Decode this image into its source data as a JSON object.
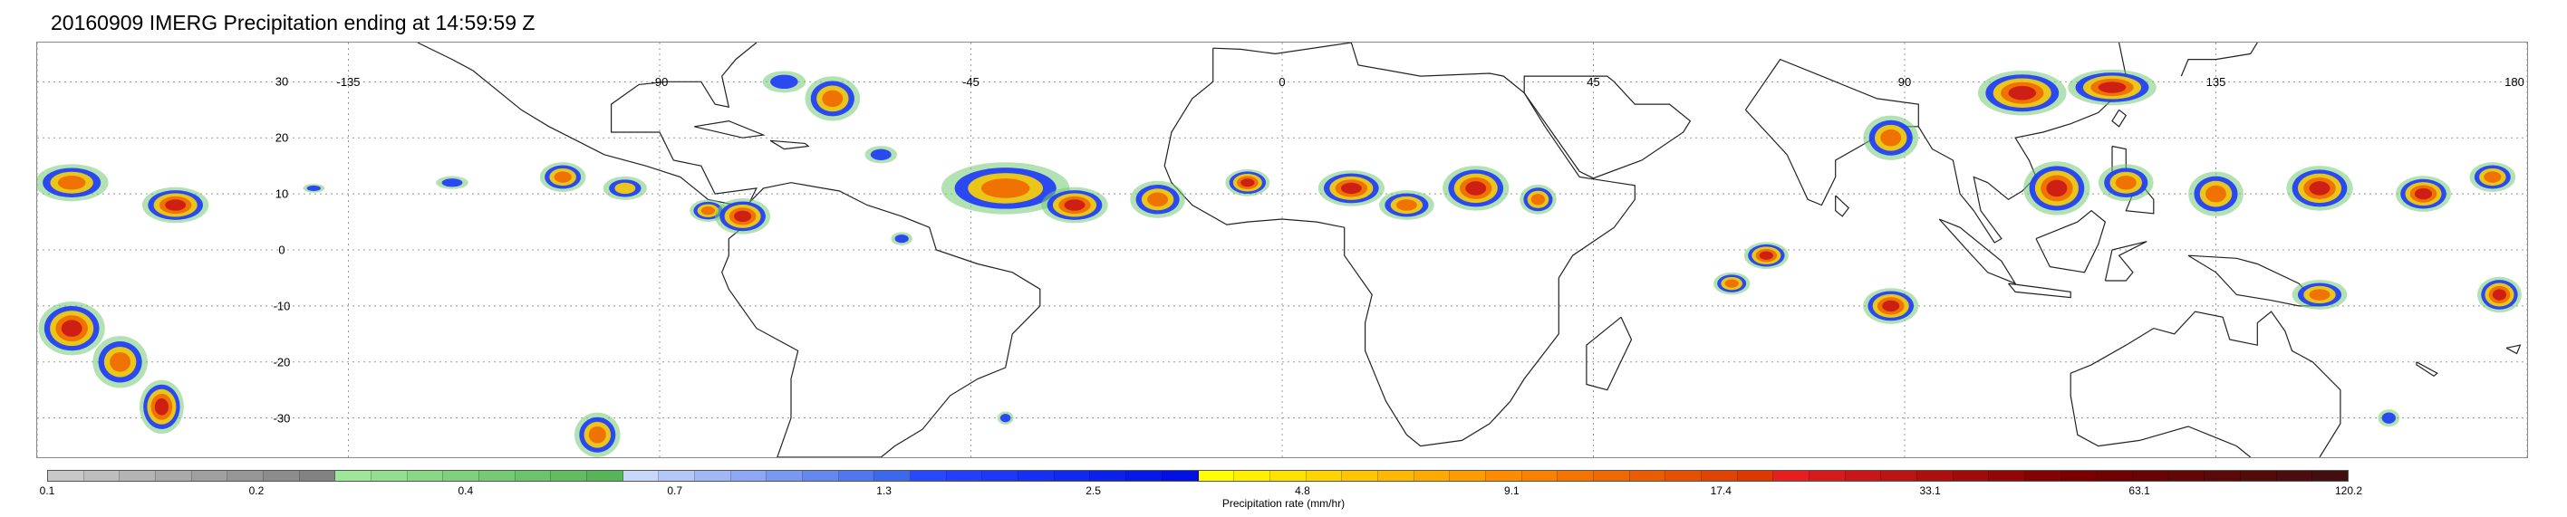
{
  "title": "20160909 IMERG Precipitation ending at 14:59:59 Z",
  "map": {
    "lat_labels": [
      {
        "lat": 30,
        "text": "30"
      },
      {
        "lat": 20,
        "text": "20"
      },
      {
        "lat": 10,
        "text": "10"
      },
      {
        "lat": 0,
        "text": "0"
      },
      {
        "lat": -10,
        "text": "-10"
      },
      {
        "lat": -20,
        "text": "-20"
      },
      {
        "lat": -30,
        "text": "-30"
      }
    ],
    "lon_labels": [
      {
        "lon": -135,
        "text": "-135"
      },
      {
        "lon": -90,
        "text": "-90"
      },
      {
        "lon": -45,
        "text": "-45"
      },
      {
        "lon": 0,
        "text": "0"
      },
      {
        "lon": 45,
        "text": "45"
      },
      {
        "lon": 90,
        "text": "90"
      },
      {
        "lon": 135,
        "text": "135"
      },
      {
        "lon": 180,
        "text": "180"
      }
    ],
    "lat_range": [
      -37,
      37
    ],
    "lon_range": [
      -180,
      180
    ],
    "gridlines": true
  },
  "colorbar": {
    "title": "Precipitation rate (mm/hr)",
    "ticks": [
      "0.1",
      "0.2",
      "0.4",
      "0.7",
      "1.3",
      "2.5",
      "4.8",
      "9.1",
      "17.4",
      "33.1",
      "63.1",
      "120.2"
    ],
    "groups": [
      {
        "name": "light-gray",
        "colors": [
          "#c8c8c8",
          "#bebebe",
          "#b4b4b4",
          "#aaaaaa",
          "#a0a0a0",
          "#969696",
          "#8c8c8c",
          "#828282"
        ]
      },
      {
        "name": "green",
        "colors": [
          "#9de69a",
          "#93df90",
          "#89d886",
          "#7fd17d",
          "#75ca73",
          "#6bc36a",
          "#62bc60",
          "#58b557"
        ]
      },
      {
        "name": "light-blue",
        "colors": [
          "#c8d8fa",
          "#b4c8f8",
          "#a0b8f6",
          "#8ca8f4",
          "#7898f2",
          "#6488f0",
          "#5078ee",
          "#3c68ec"
        ]
      },
      {
        "name": "blue",
        "colors": [
          "#2848ff",
          "#2240fb",
          "#1c38f7",
          "#1630f3",
          "#1028ef",
          "#0a20eb",
          "#0418e7",
          "#0010e3"
        ]
      },
      {
        "name": "yellow",
        "colors": [
          "#ffff00",
          "#fff000",
          "#ffe200",
          "#ffd400",
          "#ffc600",
          "#ffb800",
          "#ffaa00",
          "#ff9c00"
        ]
      },
      {
        "name": "orange",
        "colors": [
          "#ff8c00",
          "#fa8000",
          "#f57400",
          "#f06800",
          "#eb5c00",
          "#e65000",
          "#e14400",
          "#dc3800"
        ]
      },
      {
        "name": "red",
        "colors": [
          "#e61e1e",
          "#d81a1a",
          "#ca1616",
          "#bc1212",
          "#ae0e0e",
          "#a00a0a",
          "#920606",
          "#840202"
        ]
      },
      {
        "name": "dark-red",
        "colors": [
          "#7a0000",
          "#720202",
          "#6a0404",
          "#620606",
          "#5a0808",
          "#520a0a",
          "#4a0c0c",
          "#420e0e"
        ]
      }
    ]
  },
  "precip_blobs": [
    {
      "lon": -175,
      "lat": 12,
      "rx": 4,
      "ry": 2.5,
      "level": "orange"
    },
    {
      "lon": -160,
      "lat": 8,
      "rx": 3,
      "ry": 2,
      "level": "red"
    },
    {
      "lon": -140,
      "lat": 11,
      "rx": 2,
      "ry": 1,
      "level": "blue"
    },
    {
      "lon": -120,
      "lat": 12,
      "rx": 3,
      "ry": 1.5,
      "level": "blue"
    },
    {
      "lon": -104,
      "lat": 13,
      "rx": 2.5,
      "ry": 2,
      "level": "orange"
    },
    {
      "lon": -95,
      "lat": 11,
      "rx": 3,
      "ry": 2,
      "level": "yellow"
    },
    {
      "lon": -83,
      "lat": 7,
      "rx": 2,
      "ry": 1.5,
      "level": "orange"
    },
    {
      "lon": -78,
      "lat": 6,
      "rx": 2.5,
      "ry": 2,
      "level": "red"
    },
    {
      "lon": -72,
      "lat": 30,
      "rx": 4,
      "ry": 2.5,
      "level": "blue"
    },
    {
      "lon": -65,
      "lat": 27,
      "rx": 3,
      "ry": 3,
      "level": "orange"
    },
    {
      "lon": -58,
      "lat": 17,
      "rx": 3,
      "ry": 2,
      "level": "blue"
    },
    {
      "lon": -40,
      "lat": 11,
      "rx": 7,
      "ry": 3.5,
      "level": "orange"
    },
    {
      "lon": -30,
      "lat": 8,
      "rx": 3,
      "ry": 2,
      "level": "red"
    },
    {
      "lon": -18,
      "lat": 9,
      "rx": 3,
      "ry": 2.5,
      "level": "orange"
    },
    {
      "lon": -5,
      "lat": 12,
      "rx": 2,
      "ry": 1.5,
      "level": "red"
    },
    {
      "lon": 10,
      "lat": 11,
      "rx": 3,
      "ry": 2,
      "level": "red"
    },
    {
      "lon": 18,
      "lat": 8,
      "rx": 3,
      "ry": 2,
      "level": "orange"
    },
    {
      "lon": 28,
      "lat": 11,
      "rx": 3,
      "ry": 2.5,
      "level": "red"
    },
    {
      "lon": 37,
      "lat": 9,
      "rx": 2,
      "ry": 2,
      "level": "orange"
    },
    {
      "lon": 70,
      "lat": -1,
      "rx": 2,
      "ry": 1.5,
      "level": "red"
    },
    {
      "lon": 65,
      "lat": -6,
      "rx": 2,
      "ry": 1.5,
      "level": "orange"
    },
    {
      "lon": 88,
      "lat": 20,
      "rx": 3,
      "ry": 3,
      "level": "orange"
    },
    {
      "lon": 88,
      "lat": -10,
      "rx": 2.5,
      "ry": 2,
      "level": "red"
    },
    {
      "lon": 107,
      "lat": 28,
      "rx": 4,
      "ry": 2.5,
      "level": "red"
    },
    {
      "lon": 120,
      "lat": 29,
      "rx": 4,
      "ry": 2,
      "level": "red"
    },
    {
      "lon": 112,
      "lat": 11,
      "rx": 3,
      "ry": 3,
      "level": "red"
    },
    {
      "lon": 122,
      "lat": 12,
      "rx": 3,
      "ry": 2.5,
      "level": "orange"
    },
    {
      "lon": 135,
      "lat": 10,
      "rx": 3,
      "ry": 3,
      "level": "orange"
    },
    {
      "lon": 150,
      "lat": 11,
      "rx": 3,
      "ry": 2.5,
      "level": "red"
    },
    {
      "lon": 165,
      "lat": 10,
      "rx": 2.5,
      "ry": 2,
      "level": "red"
    },
    {
      "lon": 175,
      "lat": 13,
      "rx": 2.5,
      "ry": 2,
      "level": "orange"
    },
    {
      "lon": 150,
      "lat": -8,
      "rx": 3,
      "ry": 2,
      "level": "orange"
    },
    {
      "lon": 176,
      "lat": -8,
      "rx": 2,
      "ry": 2,
      "level": "red"
    },
    {
      "lon": -175,
      "lat": -14,
      "rx": 3,
      "ry": 3,
      "level": "red"
    },
    {
      "lon": -168,
      "lat": -20,
      "rx": 3,
      "ry": 3.5,
      "level": "orange"
    },
    {
      "lon": -162,
      "lat": -28,
      "rx": 2,
      "ry": 3,
      "level": "red"
    },
    {
      "lon": -99,
      "lat": -33,
      "rx": 2.5,
      "ry": 3,
      "level": "orange"
    },
    {
      "lon": -40,
      "lat": -30,
      "rx": 1.5,
      "ry": 1.5,
      "level": "blue"
    },
    {
      "lon": 160,
      "lat": -30,
      "rx": 2,
      "ry": 2,
      "level": "blue"
    },
    {
      "lon": -55,
      "lat": 2,
      "rx": 2,
      "ry": 1.5,
      "level": "blue"
    }
  ]
}
